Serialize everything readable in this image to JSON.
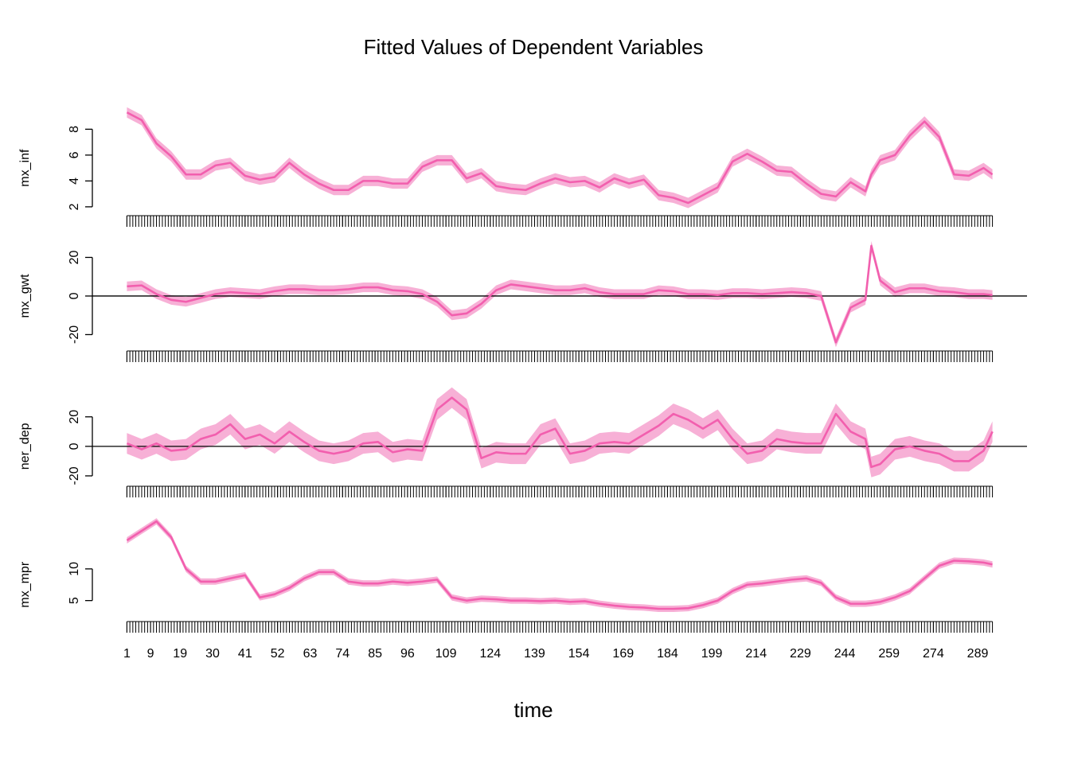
{
  "title": "Fitted Values of Dependent Variables",
  "x_label": "time",
  "x": [
    1,
    6,
    11,
    16,
    21,
    26,
    31,
    36,
    41,
    46,
    51,
    56,
    61,
    66,
    71,
    76,
    81,
    86,
    91,
    96,
    101,
    106,
    111,
    116,
    121,
    126,
    131,
    136,
    141,
    146,
    151,
    156,
    161,
    166,
    171,
    176,
    181,
    186,
    191,
    196,
    201,
    206,
    211,
    216,
    221,
    226,
    231,
    236,
    241,
    246,
    251,
    253,
    256,
    261,
    266,
    271,
    276,
    281,
    286,
    291,
    294
  ],
  "xlim": [
    -10.7,
    305.7
  ],
  "xticks": [
    1,
    9,
    19,
    30,
    41,
    52,
    63,
    74,
    85,
    96,
    109,
    124,
    139,
    154,
    169,
    184,
    199,
    214,
    229,
    244,
    259,
    274,
    289
  ],
  "minor_xtick_step": 1,
  "chart_data": [
    {
      "type": "line",
      "y_label": "mx_inf",
      "ylim": [
        1.5,
        10.3
      ],
      "yticks": [
        2,
        4,
        6,
        8
      ],
      "series": [
        {
          "color": "#f25fae",
          "band_color": "#f7b0d6",
          "values": [
            9.3,
            8.7,
            6.9,
            5.9,
            4.5,
            4.5,
            5.2,
            5.4,
            4.4,
            4.1,
            4.3,
            5.4,
            4.5,
            3.8,
            3.3,
            3.3,
            4.0,
            4.0,
            3.8,
            3.8,
            5.1,
            5.6,
            5.6,
            4.2,
            4.6,
            3.6,
            3.4,
            3.3,
            3.8,
            4.2,
            3.9,
            4.0,
            3.5,
            4.2,
            3.8,
            4.1,
            2.9,
            2.7,
            2.3,
            2.9,
            3.5,
            5.5,
            6.1,
            5.5,
            4.8,
            4.7,
            3.8,
            3.0,
            2.8,
            3.9,
            3.2,
            4.5,
            5.6,
            6.0,
            7.5,
            8.6,
            7.4,
            4.5,
            4.4,
            5.0,
            4.5
          ],
          "lower": [
            8.9,
            8.3,
            6.5,
            5.5,
            4.1,
            4.1,
            4.8,
            5.0,
            4.0,
            3.7,
            3.9,
            5.0,
            4.1,
            3.4,
            2.9,
            2.9,
            3.6,
            3.6,
            3.4,
            3.4,
            4.7,
            5.2,
            5.2,
            3.8,
            4.2,
            3.2,
            3.0,
            2.9,
            3.4,
            3.8,
            3.5,
            3.6,
            3.1,
            3.8,
            3.4,
            3.7,
            2.5,
            2.3,
            1.9,
            2.5,
            3.1,
            5.1,
            5.7,
            5.1,
            4.4,
            4.3,
            3.4,
            2.6,
            2.4,
            3.5,
            2.8,
            4.1,
            5.2,
            5.6,
            7.1,
            8.2,
            7.0,
            4.1,
            4.0,
            4.6,
            4.1
          ],
          "upper": [
            9.7,
            9.1,
            7.3,
            6.3,
            4.9,
            4.9,
            5.6,
            5.8,
            4.8,
            4.5,
            4.7,
            5.8,
            4.9,
            4.2,
            3.7,
            3.7,
            4.4,
            4.4,
            4.2,
            4.2,
            5.5,
            6.0,
            6.0,
            4.6,
            5.0,
            4.0,
            3.8,
            3.7,
            4.2,
            4.6,
            4.3,
            4.4,
            3.9,
            4.6,
            4.2,
            4.5,
            3.3,
            3.1,
            2.7,
            3.3,
            3.9,
            5.9,
            6.5,
            5.9,
            5.2,
            5.1,
            4.2,
            3.4,
            3.2,
            4.3,
            3.6,
            4.9,
            6.0,
            6.4,
            7.9,
            9.0,
            7.8,
            4.9,
            4.8,
            5.4,
            4.9
          ]
        }
      ]
    },
    {
      "type": "line",
      "y_label": "mx_gwt",
      "ylim": [
        -26,
        30.5
      ],
      "yticks": [
        -20,
        0,
        20
      ],
      "hline": 0,
      "series": [
        {
          "color": "#f25fae",
          "band_color": "#f7b0d6",
          "values": [
            5,
            5.5,
            1,
            -2,
            -3,
            -1,
            1,
            2,
            1.5,
            1,
            2.5,
            3.5,
            3.5,
            3,
            3,
            3.5,
            4.5,
            4.5,
            3,
            2.5,
            1,
            -3,
            -10,
            -9,
            -4,
            3,
            6,
            5,
            4,
            3,
            3,
            4,
            2,
            1,
            1,
            1,
            3,
            2.5,
            1,
            1,
            0.5,
            1.5,
            1.5,
            1,
            1.5,
            2,
            1.5,
            0,
            -24,
            -6,
            -2,
            26,
            8,
            2,
            4,
            4,
            2.5,
            2,
            1,
            1,
            0.5
          ],
          "lower": [
            2.5,
            3,
            -1.5,
            -4.5,
            -5.5,
            -3.5,
            -1.5,
            -0.5,
            -1,
            -1.5,
            0,
            1,
            1,
            0.5,
            0.5,
            1,
            2,
            2,
            0.5,
            0,
            -1.5,
            -5.5,
            -12.5,
            -11.5,
            -6.5,
            0.5,
            3.5,
            2.5,
            1.5,
            0.5,
            0.5,
            1.5,
            -0.5,
            -1.5,
            -1.5,
            -1.5,
            0.5,
            0,
            -1.5,
            -1.5,
            -2,
            -1,
            -1,
            -1.5,
            -1,
            -0.5,
            -1,
            -2.5,
            -26.5,
            -8.5,
            -4.5,
            23.5,
            5.5,
            -0.5,
            1.5,
            1.5,
            0,
            -0.5,
            -1.5,
            -1.5,
            -2
          ],
          "upper": [
            7.5,
            8,
            3.5,
            0.5,
            -0.5,
            1.5,
            3.5,
            4.5,
            4,
            3.5,
            5,
            6,
            6,
            5.5,
            5.5,
            6,
            7,
            7,
            5.5,
            5,
            3.5,
            -0.5,
            -7.5,
            -6.5,
            -1.5,
            5.5,
            8.5,
            7.5,
            6.5,
            5.5,
            5.5,
            6.5,
            4.5,
            3.5,
            3.5,
            3.5,
            5.5,
            5,
            3.5,
            3.5,
            3,
            4,
            4,
            3.5,
            4,
            4.5,
            4,
            2.5,
            -21.5,
            -3.5,
            0.5,
            28.5,
            10.5,
            4.5,
            6.5,
            6.5,
            5,
            4.5,
            3.5,
            3.5,
            3
          ]
        }
      ]
    },
    {
      "type": "line",
      "y_label": "ner_dep",
      "ylim": [
        -26.5,
        49
      ],
      "yticks": [
        -20,
        0,
        20
      ],
      "hline": 0,
      "series": [
        {
          "color": "#f25fae",
          "band_color": "#f7b0d6",
          "values": [
            2,
            -2,
            2,
            -3,
            -2,
            5,
            8,
            15,
            5,
            8,
            2,
            10,
            3,
            -3,
            -5,
            -3,
            2,
            3,
            -4,
            -2,
            -3,
            25,
            33,
            25,
            -8,
            -4,
            -5,
            -5,
            8,
            12,
            -5,
            -3,
            2,
            3,
            2,
            8,
            14,
            22,
            18,
            12,
            18,
            5,
            -5,
            -3,
            5,
            3,
            2,
            2,
            22,
            10,
            5,
            -14,
            -12,
            -2,
            0,
            -3,
            -5,
            -10,
            -10,
            -3,
            10
          ],
          "lower": [
            -5,
            -9,
            -5,
            -10,
            -9,
            -2,
            1,
            8,
            -2,
            1,
            -5,
            3,
            -4,
            -10,
            -12,
            -10,
            -5,
            -4,
            -11,
            -9,
            -10,
            18,
            26,
            18,
            -15,
            -11,
            -12,
            -12,
            1,
            5,
            -12,
            -10,
            -5,
            -4,
            -5,
            1,
            7,
            15,
            11,
            5,
            11,
            -2,
            -12,
            -10,
            -2,
            -4,
            -5,
            -5,
            15,
            3,
            -2,
            -21,
            -19,
            -9,
            -7,
            -10,
            -12,
            -17,
            -17,
            -10,
            3
          ],
          "upper": [
            9,
            5,
            9,
            4,
            5,
            12,
            15,
            22,
            12,
            15,
            9,
            17,
            10,
            4,
            2,
            4,
            9,
            10,
            3,
            5,
            4,
            32,
            40,
            32,
            -1,
            3,
            2,
            2,
            15,
            19,
            2,
            4,
            9,
            10,
            9,
            15,
            21,
            29,
            25,
            19,
            25,
            12,
            2,
            4,
            12,
            10,
            9,
            9,
            29,
            17,
            12,
            -7,
            -5,
            5,
            7,
            4,
            2,
            -3,
            -3,
            4,
            17
          ]
        }
      ]
    },
    {
      "type": "line",
      "y_label": "mx_mpr",
      "ylim": [
        3.7,
        19.4
      ],
      "yticks": [
        5,
        10
      ],
      "series": [
        {
          "color": "#f25fae",
          "band_color": "#f7b0d6",
          "values": [
            14.5,
            16,
            17.5,
            15,
            10,
            8,
            8,
            8.5,
            9,
            5.5,
            6,
            7,
            8.5,
            9.5,
            9.5,
            8,
            7.7,
            7.7,
            8,
            7.8,
            8,
            8.3,
            5.5,
            5,
            5.3,
            5.2,
            5,
            5,
            4.9,
            5,
            4.8,
            4.9,
            4.5,
            4.2,
            4,
            3.9,
            3.7,
            3.7,
            3.8,
            4.3,
            5,
            6.5,
            7.5,
            7.7,
            8,
            8.3,
            8.5,
            7.8,
            5.5,
            4.5,
            4.5,
            4.6,
            4.8,
            5.5,
            6.5,
            8.5,
            10.5,
            11.3,
            11.2,
            11,
            10.7
          ],
          "lower": [
            14,
            15.5,
            17,
            14.5,
            9.5,
            7.5,
            7.5,
            8,
            8.5,
            5,
            5.5,
            6.5,
            8,
            9,
            9,
            7.5,
            7.2,
            7.2,
            7.5,
            7.3,
            7.5,
            7.8,
            5,
            4.5,
            4.8,
            4.7,
            4.5,
            4.5,
            4.4,
            4.5,
            4.3,
            4.4,
            4,
            3.7,
            3.5,
            3.4,
            3.2,
            3.2,
            3.3,
            3.8,
            4.5,
            6,
            7,
            7.2,
            7.5,
            7.8,
            8,
            7.3,
            5,
            4,
            4,
            4.1,
            4.3,
            5,
            6,
            8,
            10,
            10.8,
            10.7,
            10.5,
            10.2
          ],
          "upper": [
            15,
            16.5,
            18,
            15.5,
            10.5,
            8.5,
            8.5,
            9,
            9.5,
            6,
            6.5,
            7.5,
            9,
            10,
            10,
            8.5,
            8.2,
            8.2,
            8.5,
            8.3,
            8.5,
            8.8,
            6,
            5.5,
            5.8,
            5.7,
            5.5,
            5.5,
            5.4,
            5.5,
            5.3,
            5.4,
            5,
            4.7,
            4.5,
            4.4,
            4.2,
            4.2,
            4.3,
            4.8,
            5.5,
            7,
            8,
            8.2,
            8.5,
            8.8,
            9,
            8.3,
            6,
            5,
            5,
            5.1,
            5.3,
            6,
            7,
            9,
            11,
            11.8,
            11.7,
            11.5,
            11.2
          ]
        }
      ]
    }
  ]
}
